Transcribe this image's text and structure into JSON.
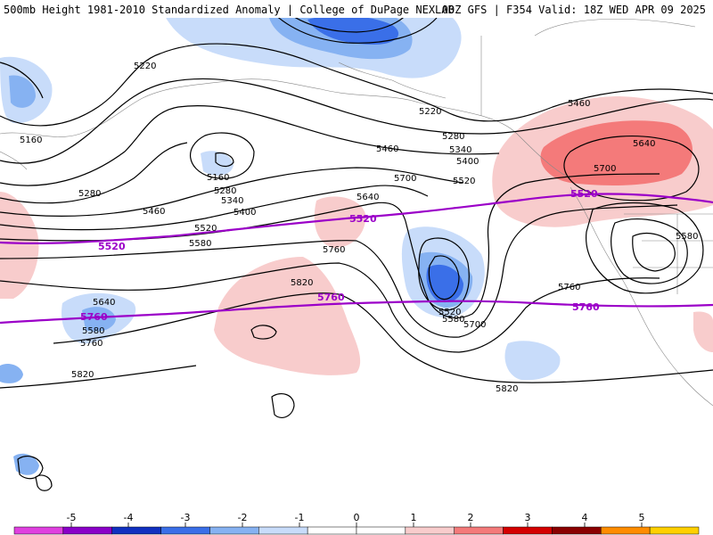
{
  "header": {
    "left_title": "500mb Height 1981-2010 Standardized Anomaly | College of DuPage NEXLAB",
    "right_title": "00Z GFS | F354 Valid: 18Z WED APR 09 2025"
  },
  "colors": {
    "strong_neg": "#3a6fe8",
    "mod_neg": "#86b2f2",
    "weak_neg": "#c8dcfa",
    "weak_pos": "#f8cccc",
    "mod_pos": "#f47a7a",
    "strong_pos": "#d40000",
    "highlight_contour": "#9b00c8",
    "contour": "#000000"
  },
  "contour_labels": [
    "5220",
    "5160",
    "5220",
    "5280",
    "5340",
    "5400",
    "5460",
    "5520",
    "5460",
    "5640",
    "5700",
    "5580",
    "5280",
    "5160",
    "5280",
    "5340",
    "5400",
    "5460",
    "5520",
    "5580",
    "5640",
    "5700",
    "5760",
    "5820",
    "5640",
    "5760",
    "5820",
    "5580",
    "5520",
    "5700",
    "5760",
    "5820",
    "5580"
  ],
  "highlight_labels": [
    "5520",
    "5520",
    "5520",
    "5760",
    "5760",
    "5760"
  ],
  "colorbar": {
    "ticks": [
      "-5",
      "-4",
      "-3",
      "-2",
      "-1",
      "0",
      "1",
      "2",
      "3",
      "4",
      "5"
    ],
    "colors": [
      "#e040e0",
      "#8a00c8",
      "#1030c0",
      "#3a6fe8",
      "#86b2f2",
      "#c8dcfa",
      "#ffffff",
      "#ffffff",
      "#f8cccc",
      "#f47a7a",
      "#d40000",
      "#8a0000",
      "#ff8c00",
      "#ffd000"
    ]
  }
}
